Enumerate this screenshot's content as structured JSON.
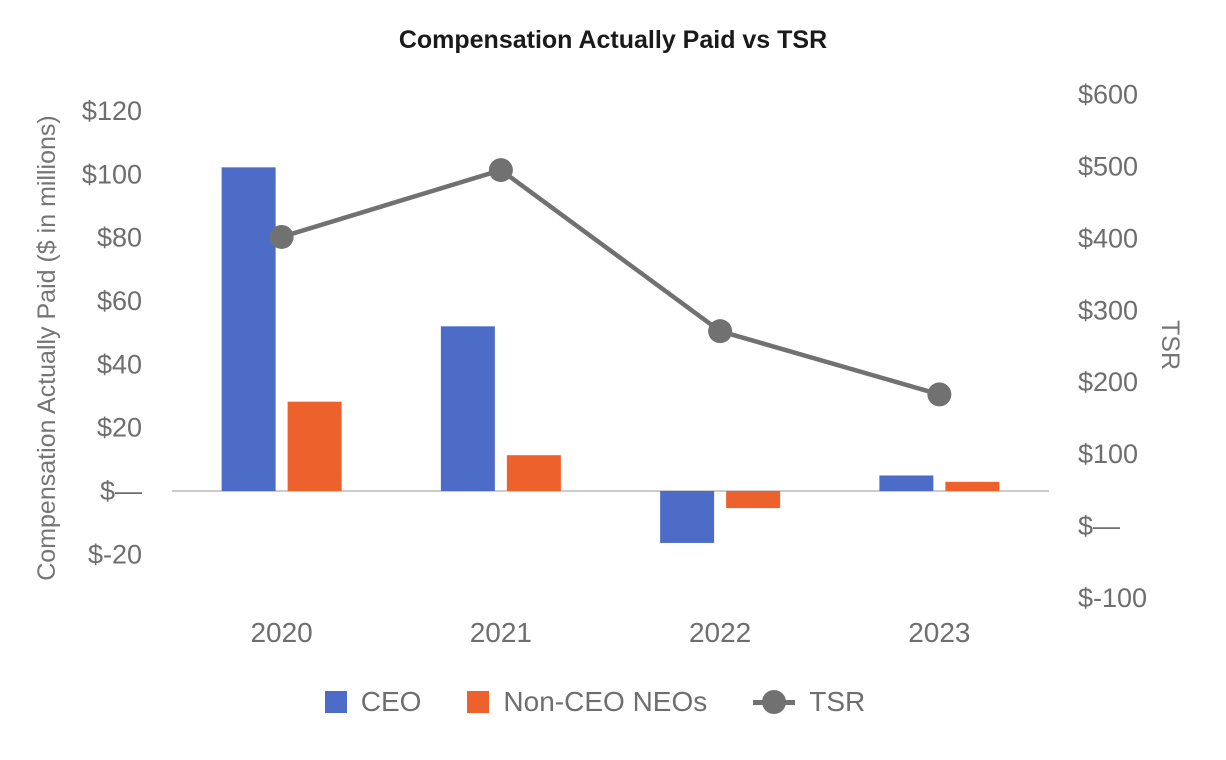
{
  "chart_data": {
    "type": "combo-bar-line",
    "title": "Compensation Actually Paid vs TSR",
    "categories": [
      "2020",
      "2021",
      "2022",
      "2023"
    ],
    "series": [
      {
        "name": "CEO",
        "type": "bar",
        "axis": "left",
        "color": "#4D6CC8",
        "values": [
          102.2,
          52.0,
          -16.4,
          4.9
        ]
      },
      {
        "name": "Non-CEO NEOs",
        "type": "bar",
        "axis": "left",
        "color": "#EC612C",
        "values": [
          28.2,
          11.3,
          -5.4,
          2.9
        ]
      },
      {
        "name": "TSR",
        "type": "line",
        "axis": "right",
        "color": "#717171",
        "values": [
          402,
          495,
          271,
          183
        ]
      }
    ],
    "left_axis": {
      "label": "Compensation Actually Paid ($ in millions)",
      "ticks": [
        "$120",
        "$100",
        "$80",
        "$60",
        "$40",
        "$20",
        "$—",
        "$-20"
      ],
      "tick_values": [
        120,
        100,
        80,
        60,
        40,
        20,
        0,
        -20
      ],
      "range": [
        -20,
        120
      ]
    },
    "right_axis": {
      "label": "TSR",
      "ticks": [
        "$600",
        "$500",
        "$400",
        "$300",
        "$200",
        "$100",
        "$—",
        "$-100"
      ],
      "tick_values": [
        600,
        500,
        400,
        300,
        200,
        100,
        0,
        -100
      ],
      "range": [
        -100,
        600
      ]
    },
    "legend_position": "bottom",
    "grid": false,
    "baseline_color": "#cccccc",
    "background_color": "#ffffff"
  }
}
